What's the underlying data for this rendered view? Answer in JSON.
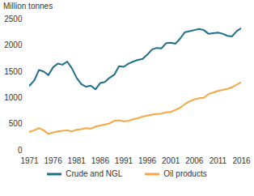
{
  "chart_data": {
    "type": "line",
    "y_label": "Million tonnes",
    "x": [
      1971,
      1972,
      1973,
      1974,
      1975,
      1976,
      1977,
      1978,
      1979,
      1980,
      1981,
      1982,
      1983,
      1984,
      1985,
      1986,
      1987,
      1988,
      1989,
      1990,
      1991,
      1992,
      1993,
      1994,
      1995,
      1996,
      1997,
      1998,
      1999,
      2000,
      2001,
      2002,
      2003,
      2004,
      2005,
      2006,
      2007,
      2008,
      2009,
      2010,
      2011,
      2012,
      2013,
      2014,
      2015,
      2016
    ],
    "series": [
      {
        "name": "Crude and NGL",
        "color": "#1f6e8c",
        "values": [
          1230,
          1330,
          1530,
          1500,
          1430,
          1580,
          1650,
          1630,
          1690,
          1560,
          1380,
          1260,
          1210,
          1230,
          1160,
          1280,
          1300,
          1380,
          1440,
          1600,
          1590,
          1650,
          1690,
          1720,
          1740,
          1820,
          1920,
          1950,
          1940,
          2040,
          2050,
          2030,
          2130,
          2250,
          2270,
          2290,
          2310,
          2290,
          2220,
          2230,
          2240,
          2220,
          2180,
          2170,
          2270,
          2330
        ]
      },
      {
        "name": "Oil products",
        "color": "#f5a742",
        "values": [
          350,
          380,
          420,
          380,
          310,
          340,
          360,
          370,
          380,
          360,
          390,
          400,
          420,
          410,
          450,
          470,
          490,
          510,
          560,
          570,
          550,
          560,
          590,
          610,
          640,
          660,
          680,
          690,
          700,
          720,
          730,
          770,
          810,
          880,
          930,
          970,
          990,
          1000,
          1070,
          1100,
          1130,
          1150,
          1170,
          1200,
          1250,
          1300
        ]
      }
    ],
    "xlim": [
      1971,
      2016
    ],
    "xticks": [
      1971,
      1976,
      1981,
      1986,
      1991,
      1996,
      2001,
      2006,
      2011,
      2016
    ],
    "ylim": [
      0,
      2500
    ],
    "yticks": [
      0,
      500,
      1000,
      1500,
      2000,
      2500
    ],
    "grid": false,
    "legend": "bottom"
  }
}
